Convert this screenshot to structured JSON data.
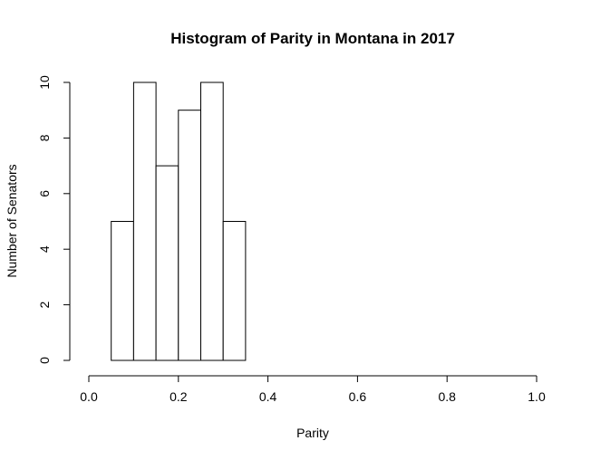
{
  "chart_data": {
    "type": "bar",
    "title": "Histogram of Parity in Montana in 2017",
    "xlabel": "Parity",
    "ylabel": "Number of Senators",
    "xlim": [
      0.0,
      1.0
    ],
    "ylim": [
      0,
      10
    ],
    "bin_width": 0.05,
    "bins": [
      {
        "start": 0.0,
        "end": 0.05,
        "count": 0
      },
      {
        "start": 0.05,
        "end": 0.1,
        "count": 5
      },
      {
        "start": 0.1,
        "end": 0.15,
        "count": 10
      },
      {
        "start": 0.15,
        "end": 0.2,
        "count": 7
      },
      {
        "start": 0.2,
        "end": 0.25,
        "count": 9
      },
      {
        "start": 0.25,
        "end": 0.3,
        "count": 10
      },
      {
        "start": 0.3,
        "end": 0.35,
        "count": 5
      },
      {
        "start": 0.35,
        "end": 0.4,
        "count": 0
      },
      {
        "start": 0.4,
        "end": 0.45,
        "count": 0
      },
      {
        "start": 0.45,
        "end": 0.5,
        "count": 0
      },
      {
        "start": 0.5,
        "end": 0.55,
        "count": 0
      },
      {
        "start": 0.55,
        "end": 0.6,
        "count": 0
      },
      {
        "start": 0.6,
        "end": 0.65,
        "count": 0
      },
      {
        "start": 0.65,
        "end": 0.7,
        "count": 0
      },
      {
        "start": 0.7,
        "end": 0.75,
        "count": 0
      },
      {
        "start": 0.75,
        "end": 0.8,
        "count": 0
      },
      {
        "start": 0.8,
        "end": 0.85,
        "count": 0
      },
      {
        "start": 0.85,
        "end": 0.9,
        "count": 0
      },
      {
        "start": 0.9,
        "end": 0.95,
        "count": 0
      },
      {
        "start": 0.95,
        "end": 1.0,
        "count": 0
      }
    ],
    "x_ticks": [
      {
        "value": 0.0,
        "label": "0.0"
      },
      {
        "value": 0.2,
        "label": "0.2"
      },
      {
        "value": 0.4,
        "label": "0.4"
      },
      {
        "value": 0.6,
        "label": "0.6"
      },
      {
        "value": 0.8,
        "label": "0.8"
      },
      {
        "value": 1.0,
        "label": "1.0"
      }
    ],
    "y_ticks": [
      {
        "value": 0,
        "label": "0"
      },
      {
        "value": 2,
        "label": "2"
      },
      {
        "value": 4,
        "label": "4"
      },
      {
        "value": 6,
        "label": "6"
      },
      {
        "value": 8,
        "label": "8"
      },
      {
        "value": 10,
        "label": "10"
      }
    ],
    "grid": false,
    "legend": "none"
  }
}
